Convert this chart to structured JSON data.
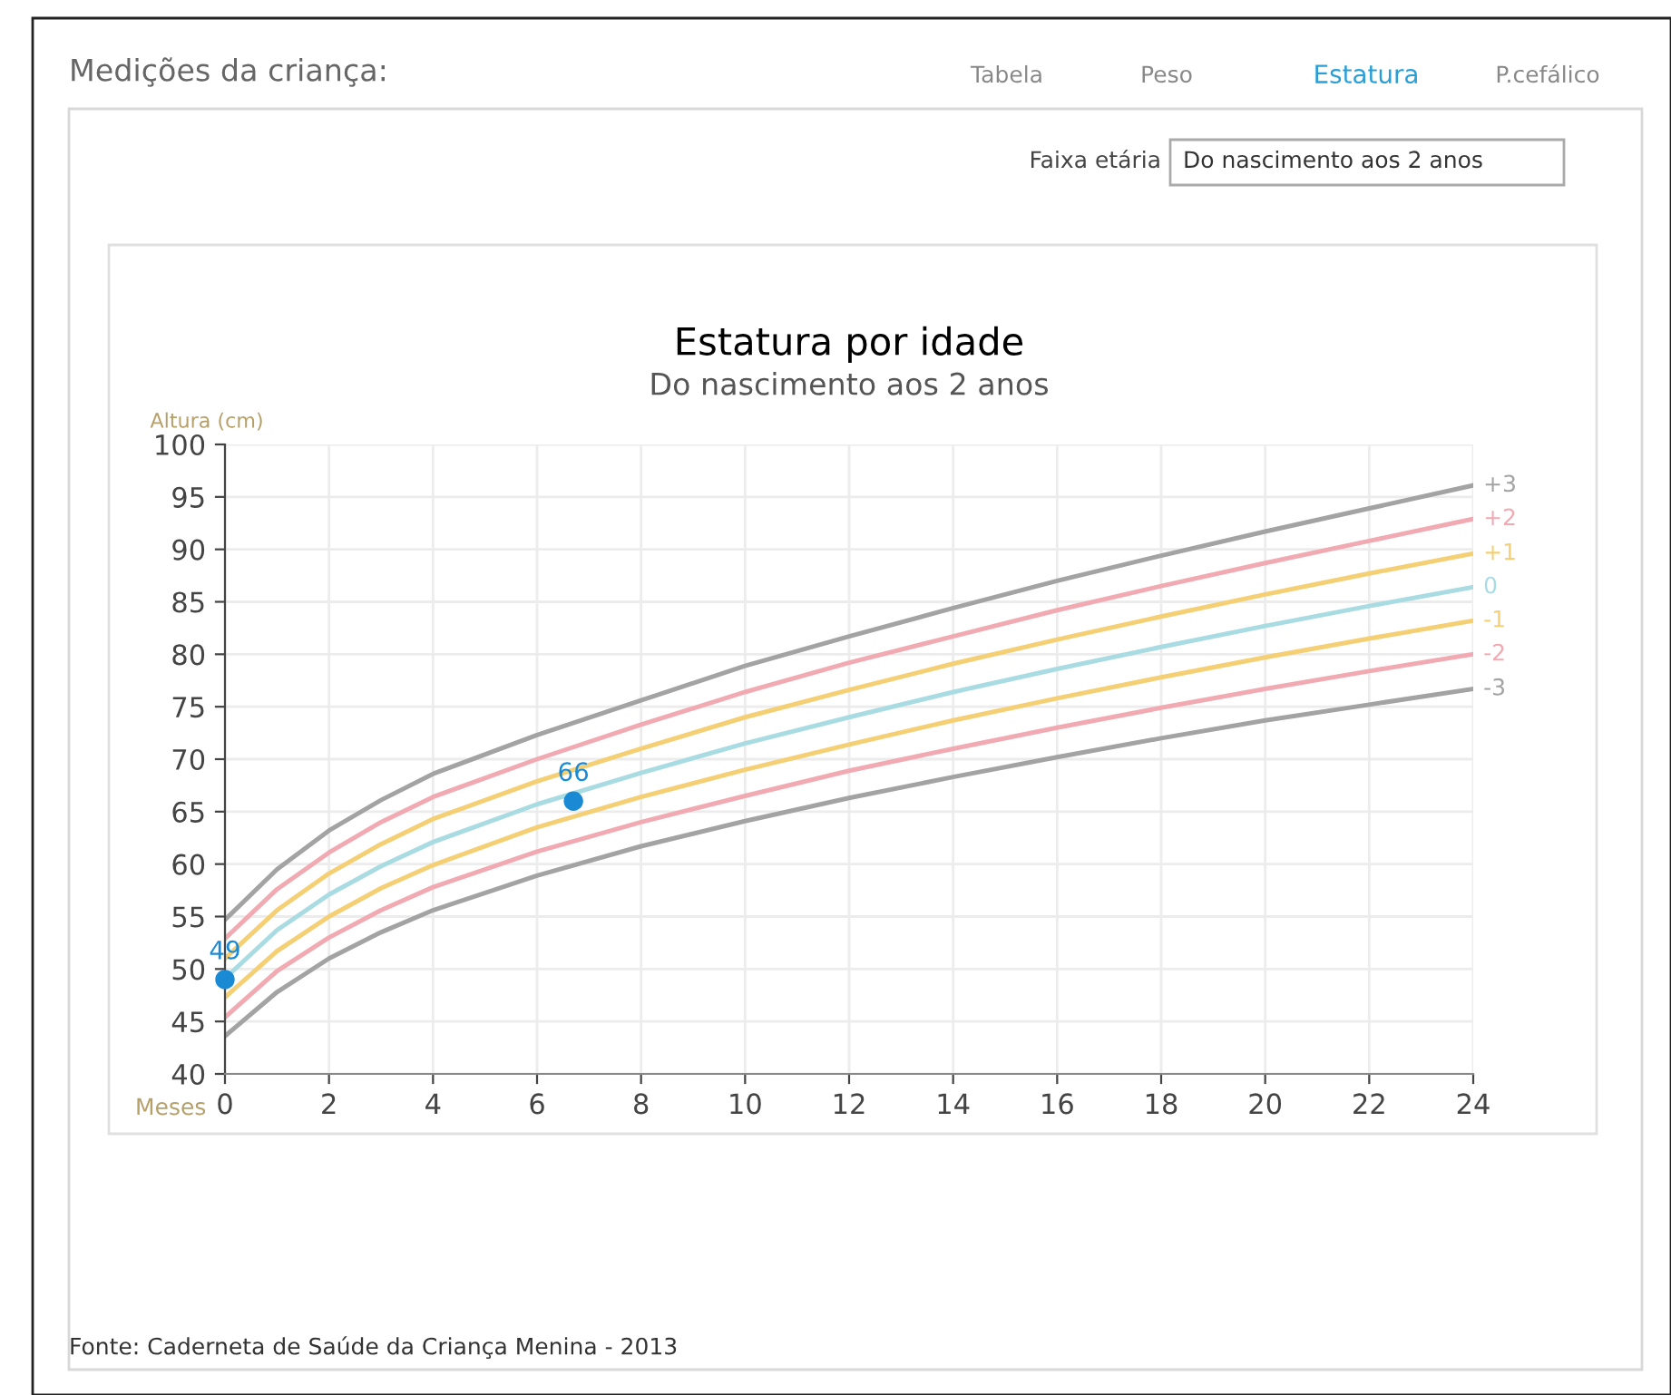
{
  "chart_data": {
    "type": "line",
    "title": "Estatura por idade",
    "subtitle": "Do nascimento aos 2 anos",
    "xlabel": "Meses",
    "ylabel": "Altura (cm)",
    "x": [
      0,
      1,
      2,
      3,
      4,
      6,
      8,
      10,
      12,
      14,
      16,
      18,
      20,
      22,
      24
    ],
    "series": [
      {
        "name": "+3",
        "color": "#a3a3a3",
        "values": [
          54.7,
          59.5,
          63.2,
          66.1,
          68.6,
          72.3,
          75.6,
          78.9,
          81.7,
          84.4,
          87.0,
          89.4,
          91.7,
          93.9,
          96.1
        ]
      },
      {
        "name": "+2",
        "color": "#f2aab2",
        "values": [
          52.9,
          57.6,
          61.1,
          64.0,
          66.4,
          70.0,
          73.3,
          76.4,
          79.2,
          81.7,
          84.2,
          86.5,
          88.7,
          90.8,
          92.9
        ]
      },
      {
        "name": "+1",
        "color": "#f4cf74",
        "values": [
          51.0,
          55.6,
          59.1,
          61.9,
          64.3,
          67.9,
          71.0,
          74.0,
          76.6,
          79.1,
          81.4,
          83.6,
          85.7,
          87.7,
          89.6
        ]
      },
      {
        "name": "0",
        "color": "#a9dce2",
        "values": [
          49.1,
          53.7,
          57.1,
          59.8,
          62.1,
          65.7,
          68.7,
          71.5,
          74.0,
          76.4,
          78.6,
          80.7,
          82.7,
          84.6,
          86.4
        ]
      },
      {
        "name": "-1",
        "color": "#f4cf74",
        "values": [
          47.3,
          51.7,
          55.0,
          57.7,
          59.9,
          63.5,
          66.4,
          69.0,
          71.4,
          73.7,
          75.8,
          77.8,
          79.7,
          81.5,
          83.2
        ]
      },
      {
        "name": "-2",
        "color": "#f2aab2",
        "values": [
          45.4,
          49.8,
          53.0,
          55.6,
          57.8,
          61.2,
          64.0,
          66.5,
          68.9,
          71.0,
          73.0,
          74.9,
          76.7,
          78.4,
          80.0
        ]
      },
      {
        "name": "-3",
        "color": "#a3a3a3",
        "values": [
          43.6,
          47.8,
          51.0,
          53.5,
          55.6,
          58.9,
          61.7,
          64.1,
          66.3,
          68.3,
          70.2,
          72.0,
          73.7,
          75.2,
          76.7
        ]
      },
      {
        "type": "scatter",
        "marker": "circle",
        "color": "#1a8ad4",
        "x": [
          0,
          6.7
        ],
        "values": [
          49,
          66
        ],
        "value_labels": [
          "49",
          "66"
        ]
      }
    ],
    "xlim": [
      0,
      24
    ],
    "xticks": [
      0,
      2,
      4,
      6,
      8,
      10,
      12,
      14,
      16,
      18,
      20,
      22,
      24
    ],
    "ylim": [
      40,
      100
    ],
    "yticks": [
      40,
      45,
      50,
      55,
      60,
      65,
      70,
      75,
      80,
      85,
      90,
      95,
      100
    ],
    "grid": true,
    "legend": false,
    "line_style": "solid",
    "annotations": [
      "Medições da criança:",
      "Tabela",
      "Peso",
      "Estatura",
      "P.cefálico",
      "Faixa etária",
      "Do nascimento aos 2 anos",
      "Fonte: Caderneta de Saúde da Criança Menina - 2013"
    ]
  }
}
